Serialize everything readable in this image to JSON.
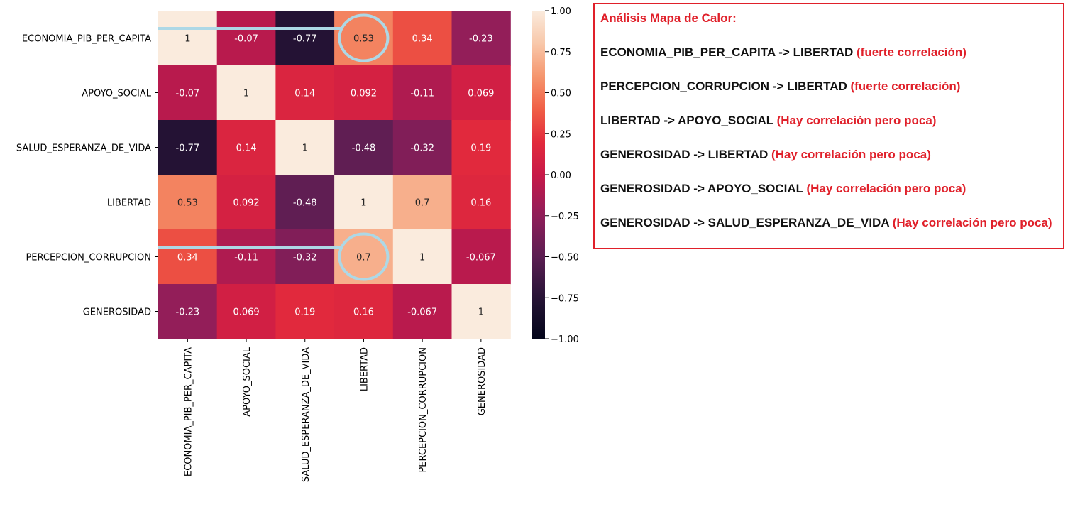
{
  "chart_data": {
    "type": "heatmap",
    "labels": [
      "ECONOMIA_PIB_PER_CAPITA",
      "APOYO_SOCIAL",
      "SALUD_ESPERANZA_DE_VIDA",
      "LIBERTAD",
      "PERCEPCION_CORRUPCION",
      "GENEROSIDAD"
    ],
    "matrix": [
      [
        1,
        -0.07,
        -0.77,
        0.53,
        0.34,
        -0.23
      ],
      [
        -0.07,
        1,
        0.14,
        0.092,
        -0.11,
        0.069
      ],
      [
        -0.77,
        0.14,
        1,
        -0.48,
        -0.32,
        0.19
      ],
      [
        0.53,
        0.092,
        -0.48,
        1,
        0.7,
        0.16
      ],
      [
        0.34,
        -0.11,
        -0.32,
        0.7,
        1,
        -0.067
      ],
      [
        -0.23,
        0.069,
        0.19,
        0.16,
        -0.067,
        1
      ]
    ],
    "cell_labels": [
      [
        "1",
        "-0.07",
        "-0.77",
        "0.53",
        "0.34",
        "-0.23"
      ],
      [
        "-0.07",
        "1",
        "0.14",
        "0.092",
        "-0.11",
        "0.069"
      ],
      [
        "-0.77",
        "0.14",
        "1",
        "-0.48",
        "-0.32",
        "0.19"
      ],
      [
        "0.53",
        "0.092",
        "-0.48",
        "1",
        "0.7",
        "0.16"
      ],
      [
        "0.34",
        "-0.11",
        "-0.32",
        "0.7",
        "1",
        "-0.067"
      ],
      [
        "-0.23",
        "0.069",
        "0.19",
        "0.16",
        "-0.067",
        "1"
      ]
    ],
    "colorbar": {
      "range": [
        -1,
        1
      ],
      "ticks": [
        1,
        0.75,
        0.5,
        0.25,
        0,
        -0.25,
        -0.5,
        -0.75,
        -1
      ],
      "tick_labels": [
        "1.00",
        "0.75",
        "0.50",
        "0.25",
        "0.00",
        "−0.25",
        "−0.50",
        "−0.75",
        "−1.00"
      ],
      "colormap": "rocket"
    },
    "highlights": [
      {
        "row": 0,
        "col": 3,
        "color": "#add8e6"
      },
      {
        "row": 4,
        "col": 3,
        "color": "#add8e6"
      }
    ]
  },
  "analysis": {
    "title": "Análisis Mapa de Calor:",
    "findings": [
      {
        "pair": "ECONOMIA_PIB_PER_CAPITA -> LIBERTAD",
        "note": "(fuerte correlación)"
      },
      {
        "pair": "PERCEPCION_CORRUPCION -> LIBERTAD",
        "note": "(fuerte correlación)"
      },
      {
        "pair": "LIBERTAD -> APOYO_SOCIAL",
        "note": "(Hay correlación pero poca)"
      },
      {
        "pair": "GENEROSIDAD -> LIBERTAD",
        "note": "(Hay correlación pero poca)"
      },
      {
        "pair": "GENEROSIDAD -> APOYO_SOCIAL",
        "note": "(Hay correlación pero poca)"
      },
      {
        "pair": "GENEROSIDAD -> SALUD_ESPERANZA_DE_VIDA",
        "note": "(Hay correlación pero poca)"
      }
    ],
    "accent_color": "#e0202a"
  }
}
